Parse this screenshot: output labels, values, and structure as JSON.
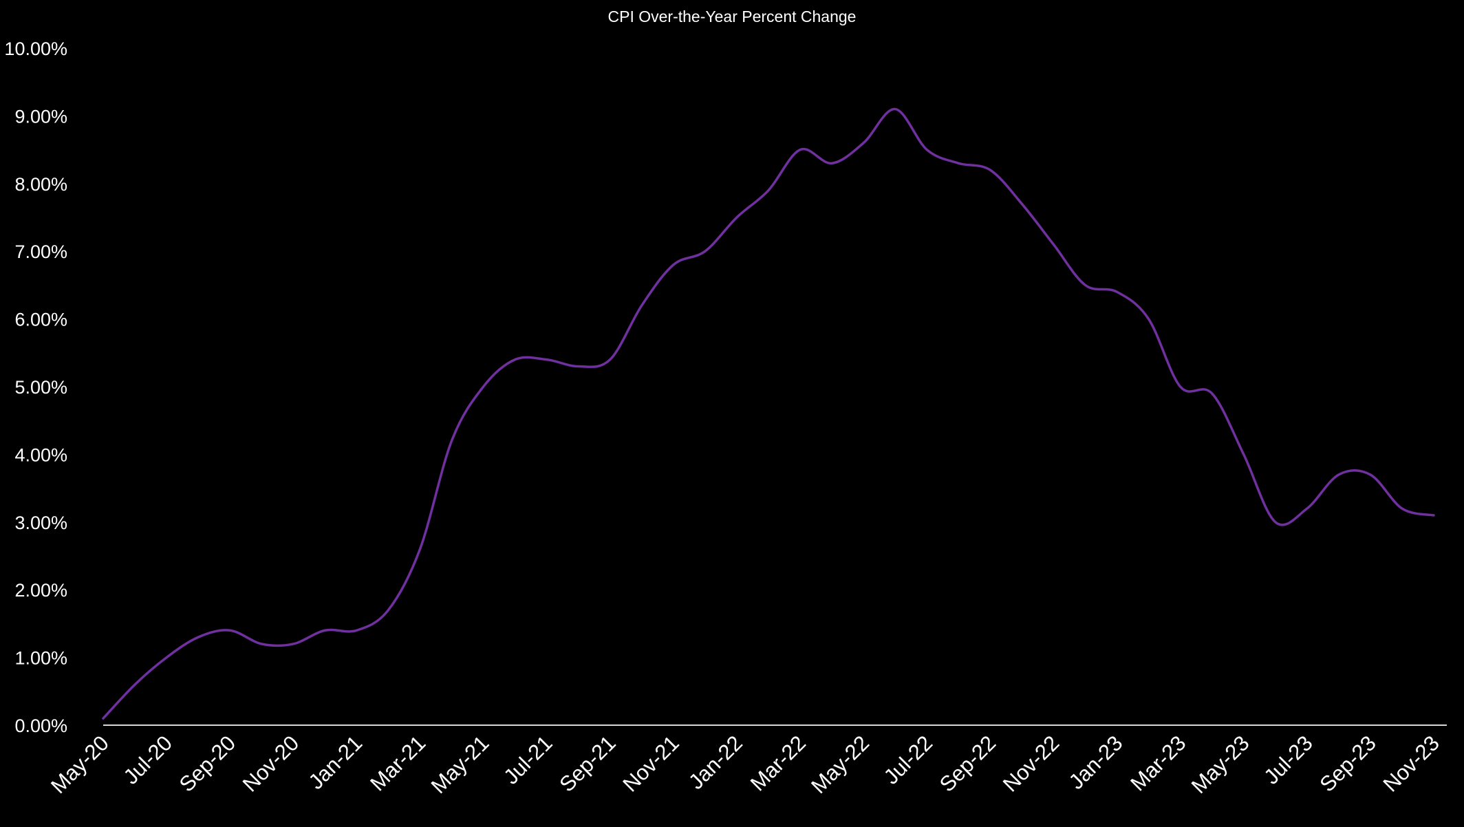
{
  "chart_data": {
    "type": "line",
    "title": "CPI Over-the-Year Percent Change",
    "xlabel": "",
    "ylabel": "",
    "ylim": [
      0,
      10
    ],
    "y_ticks": [
      0,
      1,
      2,
      3,
      4,
      5,
      6,
      7,
      8,
      9,
      10
    ],
    "y_tick_labels": [
      "0.00%",
      "1.00%",
      "2.00%",
      "3.00%",
      "4.00%",
      "5.00%",
      "6.00%",
      "7.00%",
      "8.00%",
      "9.00%",
      "10.00%"
    ],
    "x_tick_labels": [
      "May-20",
      "Jul-20",
      "Sep-20",
      "Nov-20",
      "Jan-21",
      "Mar-21",
      "May-21",
      "Jul-21",
      "Sep-21",
      "Nov-21",
      "Jan-22",
      "Mar-22",
      "May-22",
      "Jul-22",
      "Sep-22",
      "Nov-22",
      "Jan-23",
      "Mar-23",
      "May-23",
      "Jul-23",
      "Sep-23",
      "Nov-23"
    ],
    "grid": false,
    "legend": "none",
    "line_color": "#7030a0",
    "categories": [
      "May-20",
      "Jun-20",
      "Jul-20",
      "Aug-20",
      "Sep-20",
      "Oct-20",
      "Nov-20",
      "Dec-20",
      "Jan-21",
      "Feb-21",
      "Mar-21",
      "Apr-21",
      "May-21",
      "Jun-21",
      "Jul-21",
      "Aug-21",
      "Sep-21",
      "Oct-21",
      "Nov-21",
      "Dec-21",
      "Jan-22",
      "Feb-22",
      "Mar-22",
      "Apr-22",
      "May-22",
      "Jun-22",
      "Jul-22",
      "Aug-22",
      "Sep-22",
      "Oct-22",
      "Nov-22",
      "Dec-22",
      "Jan-23",
      "Feb-23",
      "Mar-23",
      "Apr-23",
      "May-23",
      "Jun-23",
      "Jul-23",
      "Aug-23",
      "Sep-23",
      "Oct-23",
      "Nov-23"
    ],
    "series": [
      {
        "values": [
          0.1,
          0.6,
          1.0,
          1.3,
          1.4,
          1.2,
          1.2,
          1.4,
          1.4,
          1.7,
          2.6,
          4.2,
          5.0,
          5.4,
          5.4,
          5.3,
          5.4,
          6.2,
          6.8,
          7.0,
          7.5,
          7.9,
          8.5,
          8.3,
          8.6,
          9.1,
          8.5,
          8.3,
          8.2,
          7.7,
          7.1,
          6.5,
          6.4,
          6.0,
          5.0,
          4.9,
          4.0,
          3.0,
          3.2,
          3.7,
          3.7,
          3.2,
          3.1
        ]
      }
    ]
  }
}
